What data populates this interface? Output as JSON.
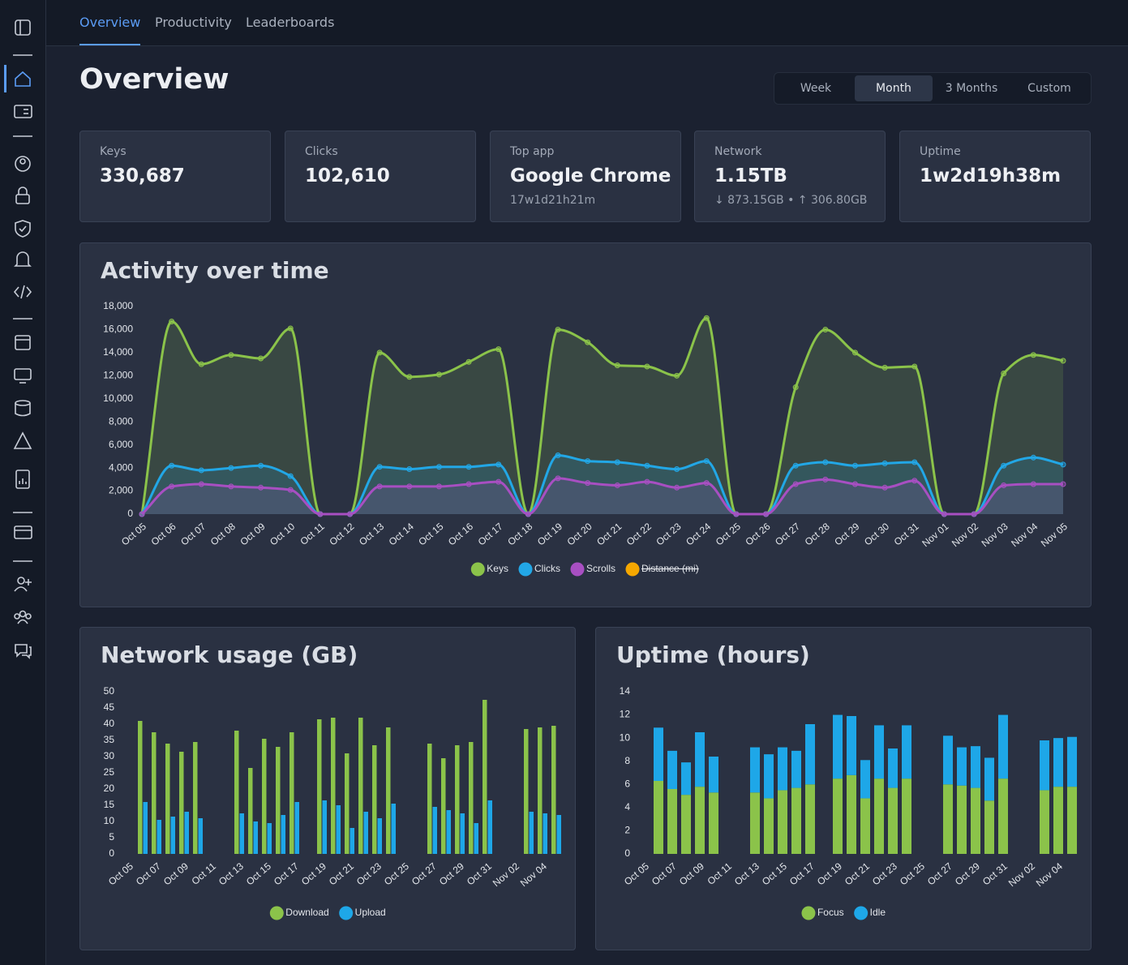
{
  "tabs": [
    "Overview",
    "Productivity",
    "Leaderboards"
  ],
  "active_tab": 0,
  "page_title": "Overview",
  "range_options": [
    "Week",
    "Month",
    "3 Months",
    "Custom"
  ],
  "active_range": 1,
  "stats": [
    {
      "label": "Keys",
      "value": "330,687"
    },
    {
      "label": "Clicks",
      "value": "102,610"
    },
    {
      "label": "Top app",
      "value": "Google Chrome",
      "sub": "17w1d21h21m"
    },
    {
      "label": "Network",
      "value": "1.15TB",
      "sub": "↓ 873.15GB • ↑ 306.80GB"
    },
    {
      "label": "Uptime",
      "value": "1w2d19h38m"
    }
  ],
  "chart_data": [
    {
      "type": "area",
      "title": "Activity over time",
      "categories": [
        "Oct 05",
        "Oct 06",
        "Oct 07",
        "Oct 08",
        "Oct 09",
        "Oct 10",
        "Oct 11",
        "Oct 12",
        "Oct 13",
        "Oct 14",
        "Oct 15",
        "Oct 16",
        "Oct 17",
        "Oct 18",
        "Oct 19",
        "Oct 20",
        "Oct 21",
        "Oct 22",
        "Oct 23",
        "Oct 24",
        "Oct 25",
        "Oct 26",
        "Oct 27",
        "Oct 28",
        "Oct 29",
        "Oct 30",
        "Oct 31",
        "Nov 01",
        "Nov 02",
        "Nov 03",
        "Nov 04",
        "Nov 05"
      ],
      "series": [
        {
          "name": "Keys",
          "color": "#8bc34a",
          "values": [
            0,
            16700,
            13000,
            13800,
            13500,
            16100,
            0,
            0,
            14000,
            11900,
            12100,
            13200,
            14300,
            0,
            16000,
            14900,
            12900,
            12800,
            12000,
            17000,
            0,
            0,
            11000,
            16000,
            14000,
            12700,
            12800,
            0,
            0,
            12200,
            13800,
            13300
          ]
        },
        {
          "name": "Clicks",
          "color": "#22a7e6",
          "values": [
            0,
            4200,
            3800,
            4000,
            4200,
            3300,
            0,
            0,
            4100,
            3900,
            4100,
            4100,
            4300,
            0,
            5100,
            4600,
            4500,
            4200,
            3900,
            4600,
            0,
            0,
            4200,
            4500,
            4200,
            4400,
            4500,
            0,
            0,
            4200,
            4900,
            4300
          ]
        },
        {
          "name": "Scrolls",
          "color": "#a84fc2",
          "values": [
            0,
            2400,
            2600,
            2400,
            2300,
            2100,
            0,
            0,
            2400,
            2400,
            2400,
            2600,
            2800,
            0,
            3100,
            2700,
            2500,
            2800,
            2300,
            2700,
            0,
            0,
            2600,
            3000,
            2600,
            2300,
            2900,
            0,
            0,
            2500,
            2600,
            2600
          ]
        }
      ],
      "hidden_series": [
        {
          "name": "Distance (mi)",
          "color": "#f5a700"
        }
      ],
      "ylim": [
        0,
        18000
      ],
      "yticks": [
        0,
        {
          "value": 2000,
          "label": "2,000"
        },
        {
          "value": 4000,
          "label": "4,000"
        },
        {
          "value": 6000,
          "label": "6,000"
        },
        {
          "value": 8000,
          "label": "8,000"
        },
        {
          "value": 10000,
          "label": "10,000"
        },
        {
          "value": 12000,
          "label": "12,000"
        },
        {
          "value": 14000,
          "label": "14,000"
        },
        {
          "value": 16000,
          "label": "16,000"
        },
        {
          "value": 18000,
          "label": "18,000"
        }
      ],
      "grid": false
    },
    {
      "type": "bar",
      "title": "Network usage (GB)",
      "categories": [
        "Oct 05",
        null,
        "Oct 07",
        null,
        "Oct 09",
        null,
        "Oct 11",
        null,
        "Oct 13",
        null,
        "Oct 15",
        null,
        "Oct 17",
        null,
        "Oct 19",
        null,
        "Oct 21",
        null,
        "Oct 23",
        null,
        "Oct 25",
        null,
        "Oct 27",
        null,
        "Oct 29",
        null,
        "Oct 31",
        null,
        "Nov 02",
        null,
        "Nov 04",
        null
      ],
      "series": [
        {
          "name": "Download",
          "color": "#8bc34a",
          "values": [
            0,
            41,
            37.5,
            34,
            31.5,
            34.5,
            0,
            0,
            38,
            26.5,
            35.5,
            33,
            37.5,
            0,
            41.5,
            42,
            31,
            42,
            33.5,
            39,
            0,
            0,
            34,
            29.5,
            33.5,
            34.5,
            47.5,
            0,
            0,
            38.5,
            39,
            39.5
          ]
        },
        {
          "name": "Upload",
          "color": "#1ea7e8",
          "values": [
            0,
            16,
            10.5,
            11.5,
            13,
            11,
            0,
            0,
            12.5,
            10,
            9.5,
            12,
            16,
            0,
            16.5,
            15,
            8,
            13,
            11,
            15.5,
            0,
            0,
            14.5,
            13.5,
            12.5,
            9.5,
            16.5,
            0,
            0,
            13,
            12.5,
            12
          ]
        }
      ],
      "ylim": [
        0,
        50
      ],
      "yticks": [
        0,
        5,
        10,
        15,
        20,
        25,
        30,
        35,
        40,
        45,
        50
      ],
      "grid": false
    },
    {
      "type": "stacked_bar",
      "title": "Uptime (hours)",
      "categories": [
        "Oct 05",
        null,
        "Oct 07",
        null,
        "Oct 09",
        null,
        "Oct 11",
        null,
        "Oct 13",
        null,
        "Oct 15",
        null,
        "Oct 17",
        null,
        "Oct 19",
        null,
        "Oct 21",
        null,
        "Oct 23",
        null,
        "Oct 25",
        null,
        "Oct 27",
        null,
        "Oct 29",
        null,
        "Oct 31",
        null,
        "Nov 02",
        null,
        "Nov 04",
        null
      ],
      "series": [
        {
          "name": "Focus",
          "color": "#8bc34a",
          "values": [
            0,
            6.3,
            5.6,
            5.1,
            5.8,
            5.3,
            0,
            0,
            5.3,
            4.8,
            5.5,
            5.7,
            6,
            0,
            6.5,
            6.8,
            4.8,
            6.5,
            5.7,
            6.5,
            0,
            0,
            6,
            5.9,
            5.7,
            4.6,
            6.5,
            0,
            0,
            5.5,
            5.8,
            5.8
          ]
        },
        {
          "name": "Idle",
          "color": "#1ea7e8",
          "values": [
            0,
            4.6,
            3.3,
            2.8,
            4.7,
            3.1,
            0,
            0,
            3.9,
            3.8,
            3.7,
            3.2,
            5.2,
            0,
            5.5,
            5.1,
            3.3,
            4.6,
            3.4,
            4.6,
            0,
            0,
            4.2,
            3.3,
            3.6,
            3.7,
            5.5,
            0,
            0,
            4.3,
            4.2,
            4.3
          ]
        }
      ],
      "ylim": [
        0,
        14
      ],
      "yticks": [
        0,
        2,
        4,
        6,
        8,
        10,
        12,
        14
      ],
      "grid": false
    }
  ]
}
